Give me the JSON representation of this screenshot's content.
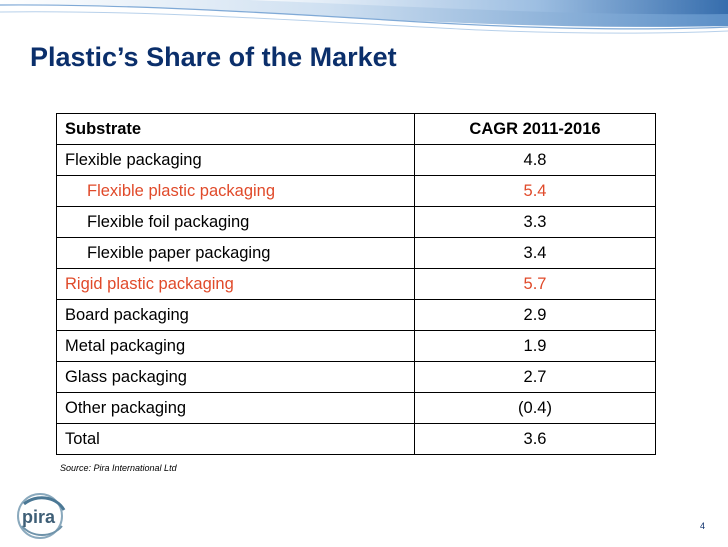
{
  "slide": {
    "title": "Plastic’s Share of the Market",
    "source": "Source: Pira International Ltd",
    "page_number": "4",
    "logo_text": "pira"
  },
  "table": {
    "headers": [
      "Substrate",
      "CAGR 2011-2016"
    ],
    "rows": [
      {
        "label": "Flexible packaging",
        "value": "4.8",
        "indent": false,
        "highlight": false
      },
      {
        "label": "Flexible plastic packaging",
        "value": "5.4",
        "indent": true,
        "highlight": true
      },
      {
        "label": "Flexible foil packaging",
        "value": "3.3",
        "indent": true,
        "highlight": false
      },
      {
        "label": "Flexible paper packaging",
        "value": "3.4",
        "indent": true,
        "highlight": false
      },
      {
        "label": "Rigid plastic packaging",
        "value": "5.7",
        "indent": false,
        "highlight": true
      },
      {
        "label": "Board packaging",
        "value": "2.9",
        "indent": false,
        "highlight": false
      },
      {
        "label": "Metal packaging",
        "value": "1.9",
        "indent": false,
        "highlight": false
      },
      {
        "label": "Glass packaging",
        "value": "2.7",
        "indent": false,
        "highlight": false
      },
      {
        "label": "Other packaging",
        "value": "(0.4)",
        "indent": false,
        "highlight": false
      },
      {
        "label": "Total",
        "value": "3.6",
        "indent": false,
        "highlight": false
      }
    ]
  },
  "colors": {
    "title": "#0b2f6b",
    "highlight": "#e04a2a",
    "band": "#5b8fc7"
  }
}
